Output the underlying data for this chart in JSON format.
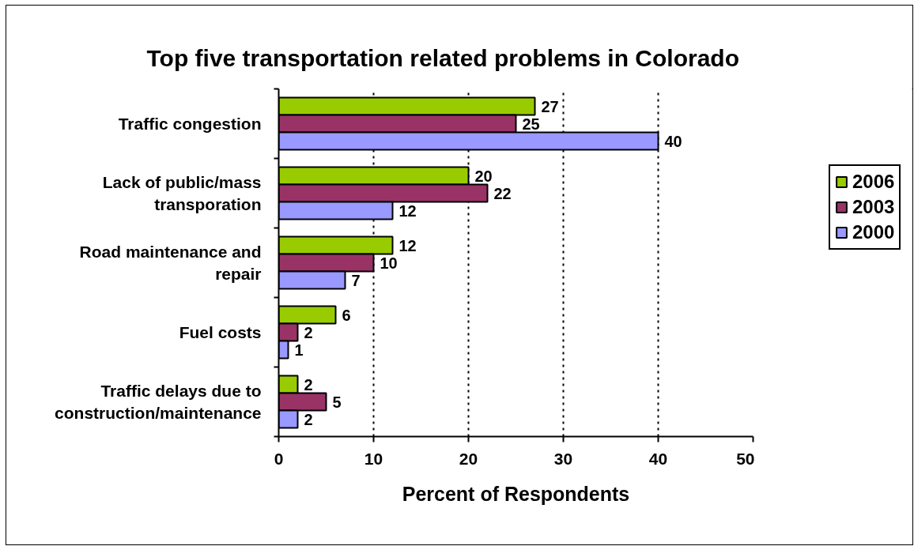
{
  "chart_data": {
    "type": "bar",
    "orientation": "horizontal",
    "title": "Top five transportation related problems in Colorado",
    "xlabel": "Percent of Respondents",
    "categories": [
      "Traffic congestion",
      "Lack of public/mass transporation",
      "Road maintenance and repair",
      "Fuel costs",
      "Traffic delays due to construction/maintenance"
    ],
    "series": [
      {
        "name": "2006",
        "color": "#99cc00",
        "values": [
          27,
          20,
          12,
          6,
          2
        ]
      },
      {
        "name": "2003",
        "color": "#993366",
        "values": [
          25,
          22,
          10,
          2,
          5
        ]
      },
      {
        "name": "2000",
        "color": "#9999ff",
        "values": [
          40,
          12,
          7,
          1,
          2
        ]
      }
    ],
    "xlim": [
      0,
      50
    ],
    "xticks": [
      0,
      10,
      20,
      30,
      40,
      50
    ],
    "grid": "x",
    "legend": "right",
    "data_labels": true
  }
}
